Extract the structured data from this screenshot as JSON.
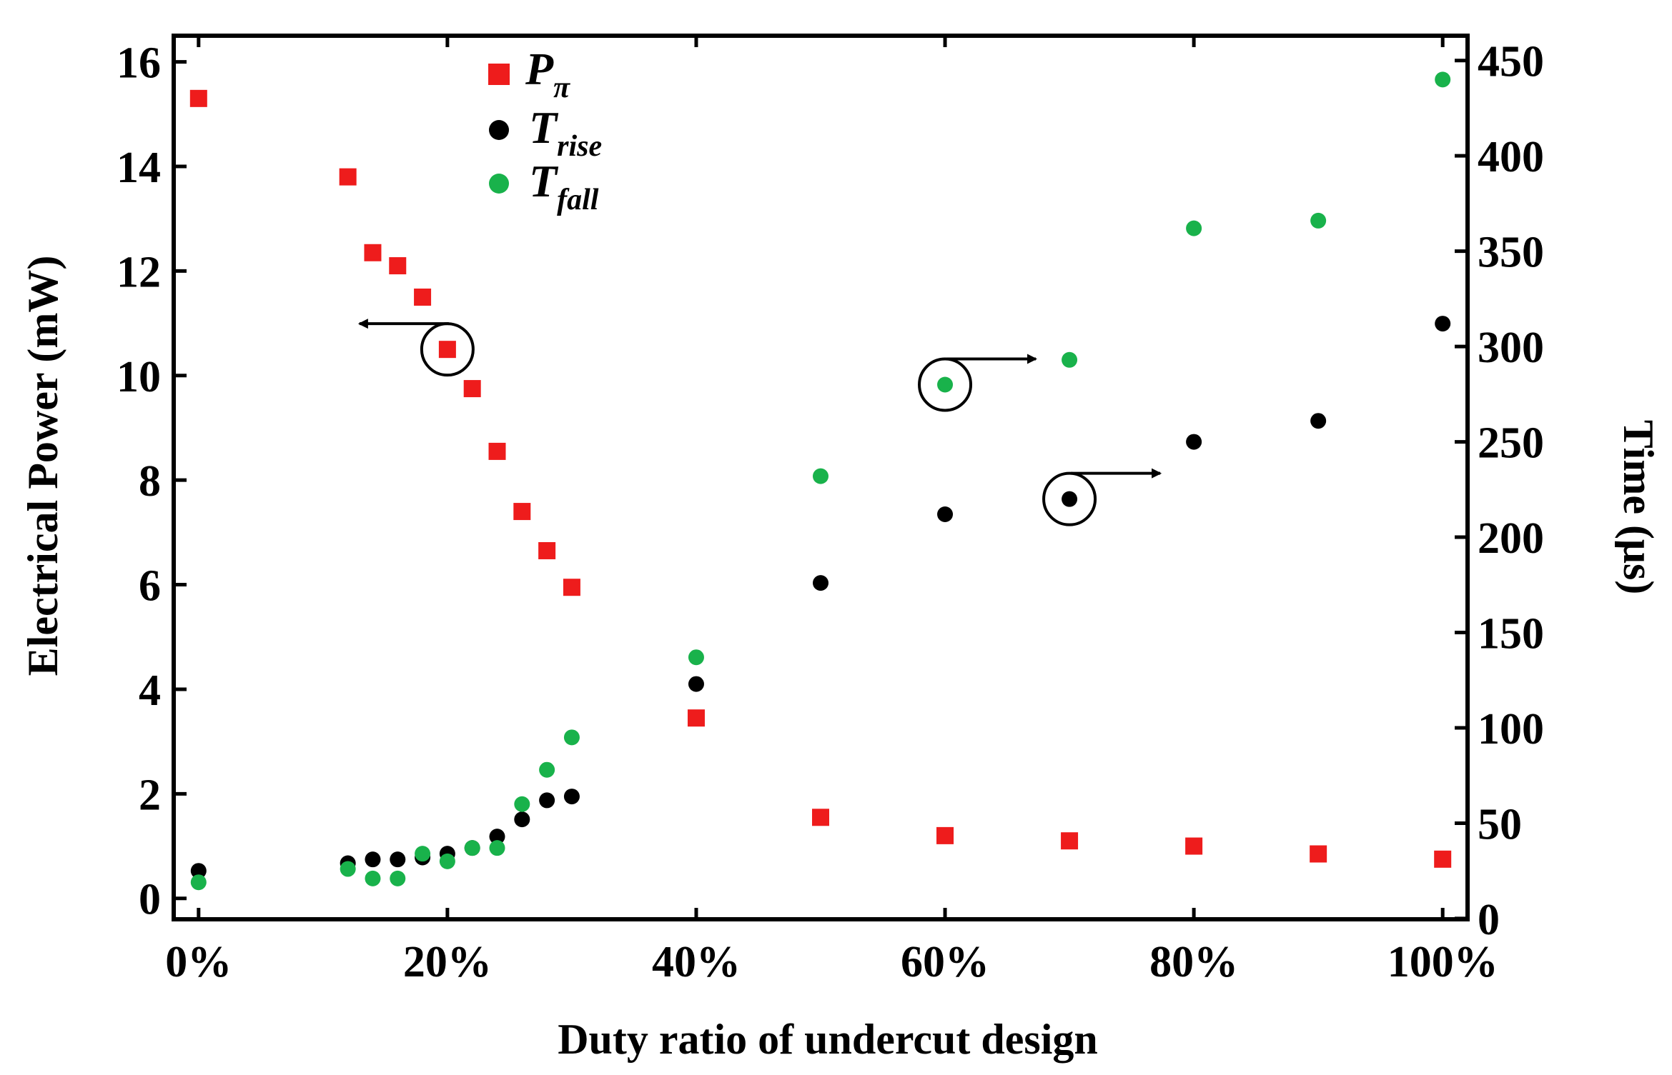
{
  "chart_data": {
    "type": "scatter",
    "xlabel": "Duty ratio of undercut design",
    "ylabel_left": "Electrical Power (mW)",
    "ylabel_right": "Time (μs)",
    "xlim": [
      -0.02,
      1.02
    ],
    "ylim_left": [
      -0.4,
      16.5
    ],
    "ylim_right": [
      -0.4,
      463
    ],
    "x_ticks": [
      0,
      0.2,
      0.4,
      0.6,
      0.8,
      1.0
    ],
    "x_tick_labels": [
      "0%",
      "20%",
      "40%",
      "60%",
      "80%",
      "100%"
    ],
    "y_left_ticks": [
      0,
      2,
      4,
      6,
      8,
      10,
      12,
      14,
      16
    ],
    "y_left_tick_labels": [
      "0",
      "2",
      "4",
      "6",
      "8",
      "10",
      "12",
      "14",
      "16"
    ],
    "y_right_ticks": [
      0,
      50,
      100,
      150,
      200,
      250,
      300,
      350,
      400,
      450
    ],
    "y_right_tick_labels": [
      "0",
      "50",
      "100",
      "150",
      "200",
      "250",
      "300",
      "350",
      "400",
      "450"
    ],
    "grid": false,
    "legend_position": "top-left",
    "series": [
      {
        "name": "P",
        "subscript": "π",
        "axis": "left",
        "marker": "square",
        "color": "#ee1c1c",
        "x": [
          0,
          0.12,
          0.14,
          0.16,
          0.18,
          0.2,
          0.22,
          0.24,
          0.26,
          0.28,
          0.3,
          0.4,
          0.5,
          0.6,
          0.7,
          0.8,
          0.9,
          1.0
        ],
        "y": [
          15.3,
          13.8,
          12.35,
          12.1,
          11.5,
          10.5,
          9.75,
          8.55,
          7.4,
          6.65,
          5.95,
          3.45,
          1.55,
          1.2,
          1.1,
          1.0,
          0.85,
          0.75
        ]
      },
      {
        "name": "T",
        "subscript": "rise",
        "axis": "right",
        "marker": "circle",
        "color": "#000000",
        "x": [
          0,
          0.12,
          0.14,
          0.16,
          0.18,
          0.2,
          0.22,
          0.24,
          0.26,
          0.28,
          0.3,
          0.4,
          0.5,
          0.6,
          0.7,
          0.8,
          0.9,
          1.0
        ],
        "y": [
          25,
          29,
          31,
          31,
          32,
          34,
          37,
          43,
          52,
          62,
          64,
          123,
          176,
          212,
          220,
          250,
          261,
          312
        ]
      },
      {
        "name": "T",
        "subscript": "fall",
        "axis": "right",
        "marker": "circle",
        "color": "#19b24b",
        "x": [
          0,
          0.12,
          0.14,
          0.16,
          0.18,
          0.2,
          0.22,
          0.24,
          0.26,
          0.28,
          0.3,
          0.4,
          0.5,
          0.6,
          0.7,
          0.8,
          0.9,
          1.0
        ],
        "y": [
          19,
          26,
          21,
          21,
          34,
          30,
          37,
          37,
          60,
          78,
          95,
          137,
          232,
          280,
          293,
          362,
          366,
          440
        ]
      }
    ],
    "annotations": [
      {
        "series": "P",
        "x": 0.2,
        "y": 10.5,
        "arrow": "left"
      },
      {
        "series": "T_fall",
        "x": 0.6,
        "y": 280,
        "arrow": "right"
      },
      {
        "series": "T_rise",
        "x": 0.7,
        "y": 220,
        "arrow": "right"
      }
    ]
  }
}
